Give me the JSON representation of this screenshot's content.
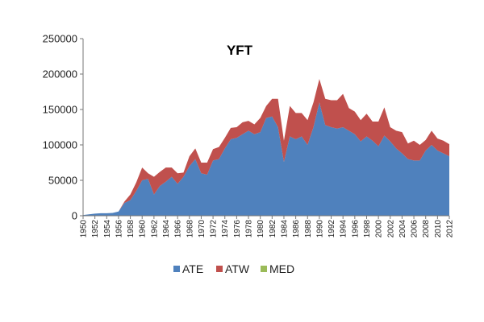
{
  "chart_data": {
    "type": "area",
    "stacked": true,
    "title": "YFT",
    "xlabel": "",
    "ylabel": "",
    "ylim": [
      0,
      250000
    ],
    "y_ticks": [
      "0",
      "50000",
      "100000",
      "150000",
      "200000",
      "250000"
    ],
    "x": [
      1950,
      1951,
      1952,
      1953,
      1954,
      1955,
      1956,
      1957,
      1958,
      1959,
      1960,
      1961,
      1962,
      1963,
      1964,
      1965,
      1966,
      1967,
      1968,
      1969,
      1970,
      1971,
      1972,
      1973,
      1974,
      1975,
      1976,
      1977,
      1978,
      1979,
      1980,
      1981,
      1982,
      1983,
      1984,
      1985,
      1986,
      1987,
      1988,
      1989,
      1990,
      1991,
      1992,
      1993,
      1994,
      1995,
      1996,
      1997,
      1998,
      1999,
      2000,
      2001,
      2002,
      2003,
      2004,
      2005,
      2006,
      2007,
      2008,
      2009,
      2010,
      2011,
      2012
    ],
    "x_ticks": [
      "1950",
      "1952",
      "1954",
      "1956",
      "1958",
      "1960",
      "1962",
      "1964",
      "1966",
      "1968",
      "1970",
      "1972",
      "1974",
      "1976",
      "1978",
      "1980",
      "1982",
      "1984",
      "1986",
      "1988",
      "1990",
      "1992",
      "1994",
      "1996",
      "1998",
      "2000",
      "2002",
      "2004",
      "2006",
      "2008",
      "2010",
      "2012"
    ],
    "grid": false,
    "legend_position": "bottom",
    "series": [
      {
        "name": "ATE",
        "color": "#4f81bd",
        "values": [
          1000,
          2000,
          3000,
          3500,
          3500,
          4000,
          6000,
          18000,
          22000,
          35000,
          50000,
          52000,
          30000,
          42000,
          48000,
          55000,
          45000,
          55000,
          70000,
          80000,
          60000,
          58000,
          78000,
          80000,
          95000,
          108000,
          110000,
          115000,
          120000,
          115000,
          118000,
          138000,
          140000,
          125000,
          76000,
          112000,
          108000,
          112000,
          100000,
          125000,
          160000,
          128000,
          125000,
          123000,
          125000,
          120000,
          115000,
          105000,
          112000,
          106000,
          98000,
          113000,
          105000,
          95000,
          88000,
          80000,
          78000,
          78000,
          92000,
          100000,
          92000,
          88000,
          84000
        ]
      },
      {
        "name": "ATW",
        "color": "#c0504d",
        "values": [
          0,
          0,
          0,
          0,
          0,
          0,
          0,
          2000,
          8000,
          12000,
          18000,
          8000,
          25000,
          20000,
          20000,
          13000,
          15000,
          6000,
          14000,
          15000,
          15000,
          17000,
          16000,
          17000,
          15000,
          16000,
          15000,
          17000,
          14000,
          14000,
          20000,
          17000,
          25000,
          40000,
          30000,
          43000,
          37000,
          33000,
          35000,
          35000,
          33000,
          37000,
          38000,
          40000,
          47000,
          32000,
          32000,
          30000,
          32000,
          27000,
          35000,
          40000,
          20000,
          25000,
          30000,
          22000,
          28000,
          22000,
          15000,
          20000,
          17000,
          18000,
          17000
        ]
      },
      {
        "name": "MED",
        "color": "#9bbb59",
        "values": [
          0,
          0,
          0,
          0,
          0,
          0,
          0,
          0,
          0,
          0,
          0,
          0,
          0,
          0,
          0,
          0,
          0,
          0,
          0,
          0,
          0,
          0,
          0,
          0,
          0,
          0,
          0,
          0,
          0,
          0,
          0,
          0,
          0,
          0,
          0,
          0,
          0,
          0,
          0,
          0,
          0,
          0,
          0,
          0,
          0,
          0,
          0,
          0,
          0,
          0,
          0,
          0,
          0,
          0,
          0,
          0,
          0,
          0,
          0,
          0,
          0,
          0,
          0
        ]
      }
    ]
  }
}
